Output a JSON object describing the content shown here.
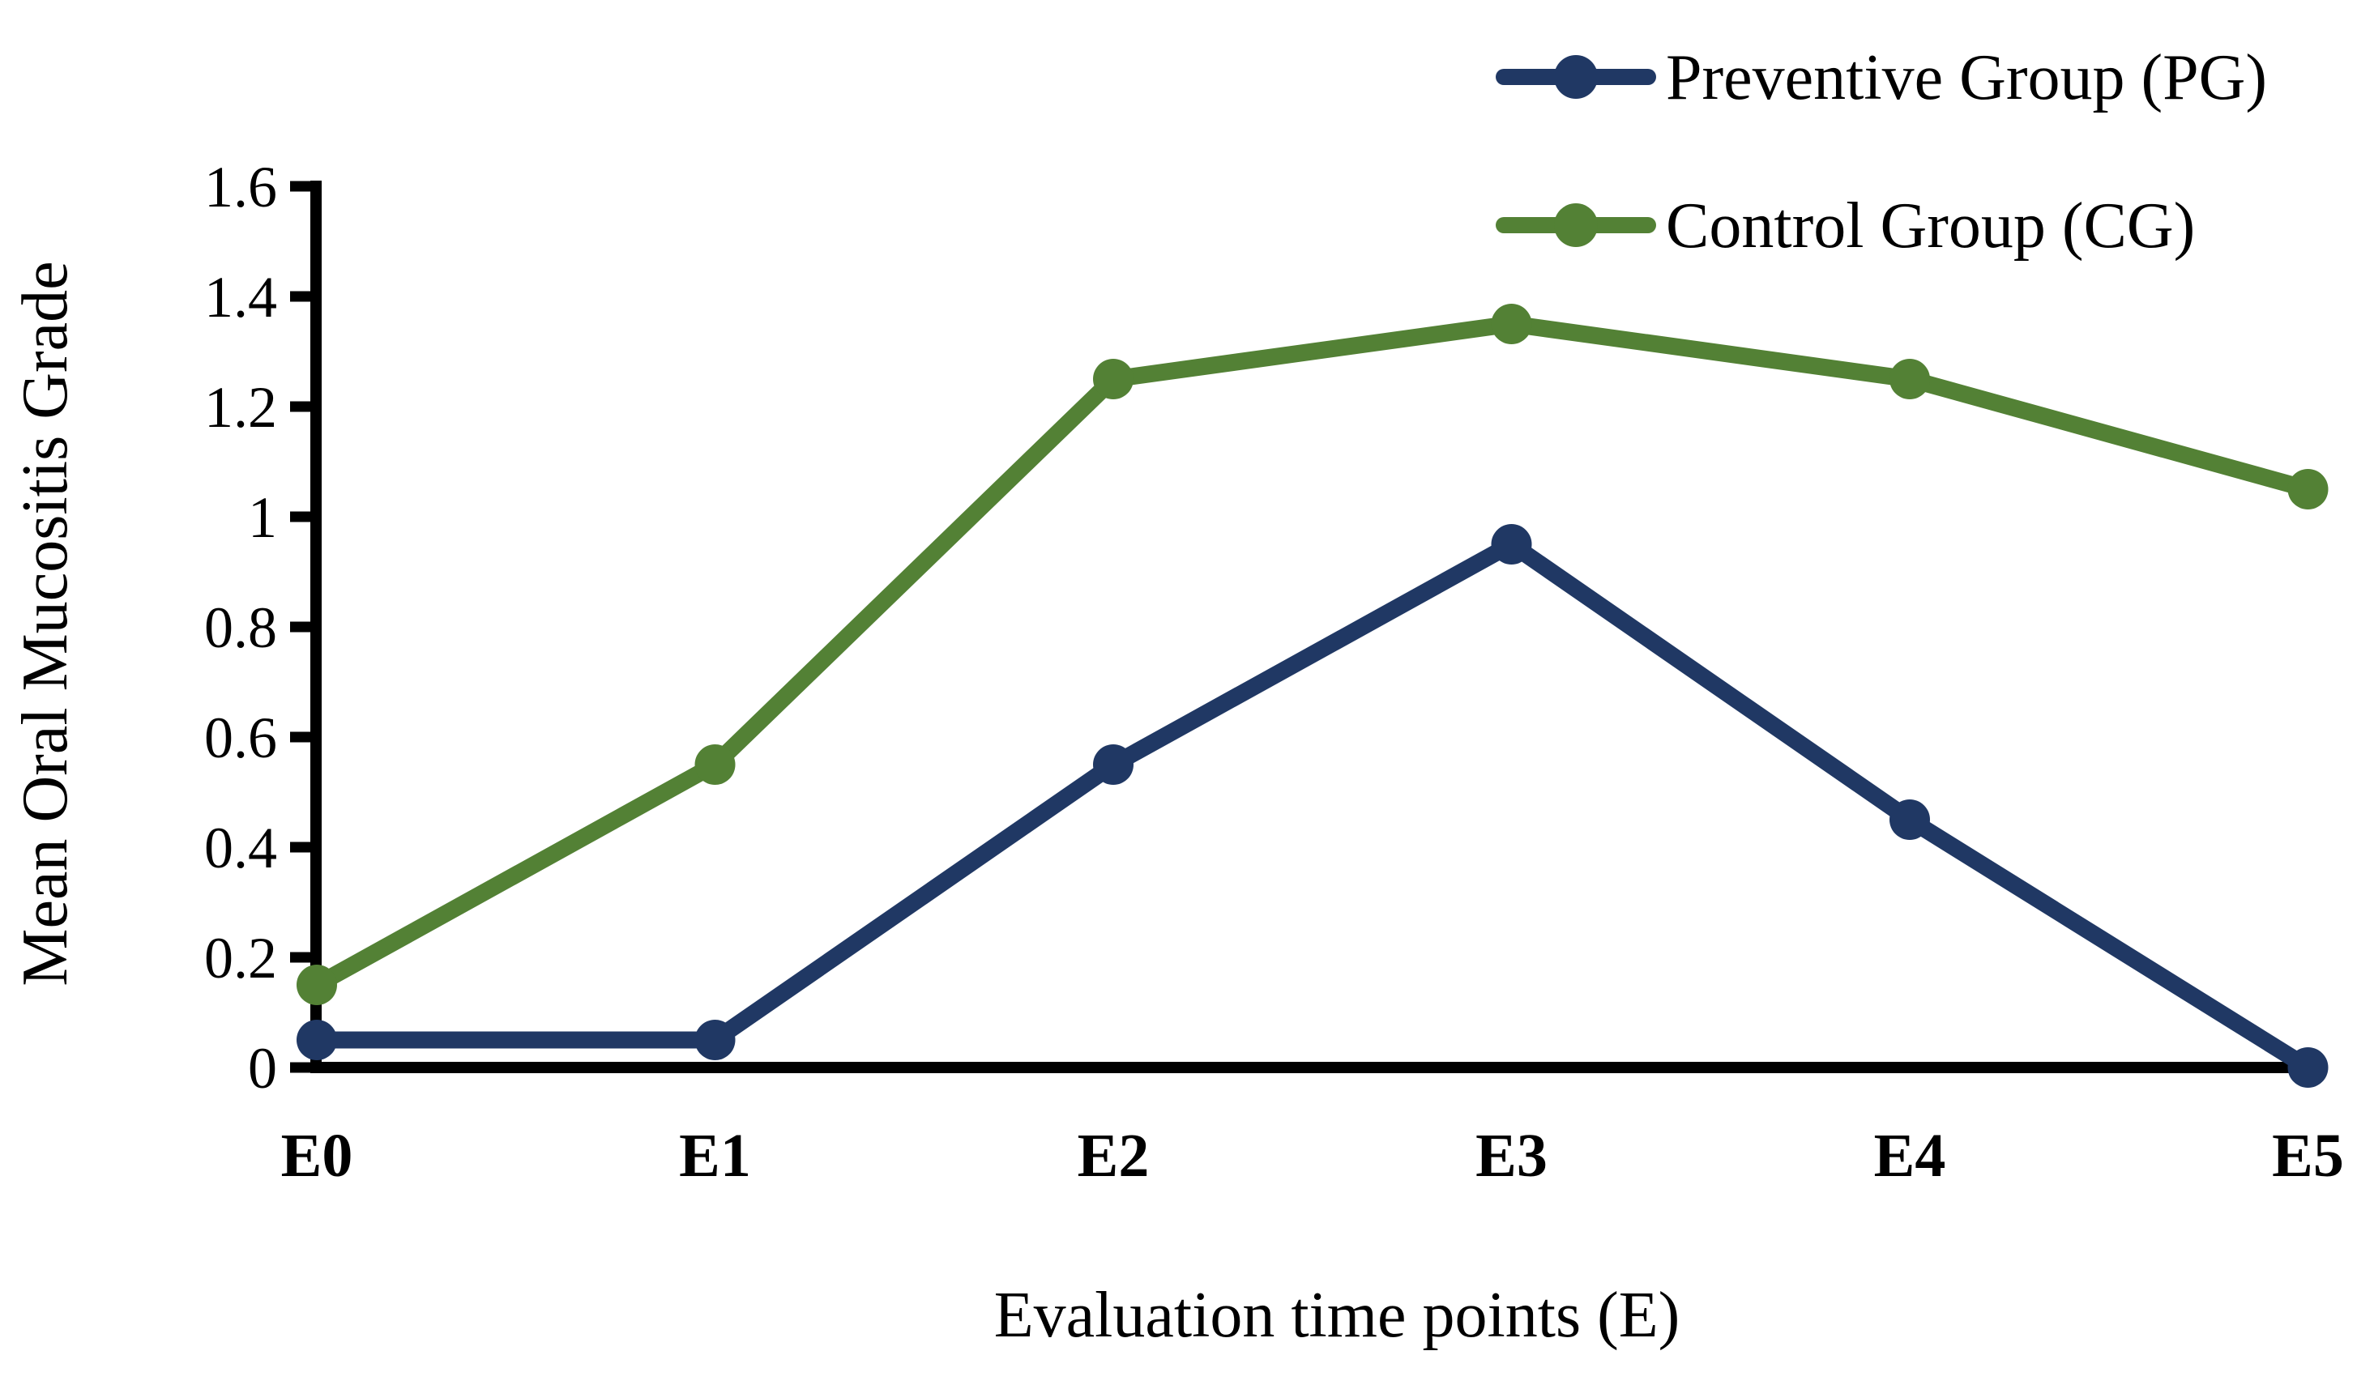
{
  "chart_data": {
    "type": "line",
    "title": "",
    "xlabel": "Evaluation time points (E)",
    "ylabel": "Mean Oral Mucositis Grade",
    "categories": [
      "E0",
      "E1",
      "E2",
      "E3",
      "E4",
      "E5"
    ],
    "series": [
      {
        "name": "Preventive Group (PG)",
        "color": "#203864",
        "values": [
          0.05,
          0.05,
          0.55,
          0.95,
          0.45,
          0
        ]
      },
      {
        "name": "Control Group (CG)",
        "color": "#538135",
        "values": [
          0.15,
          0.55,
          1.25,
          1.35,
          1.25,
          1.05
        ]
      }
    ],
    "ylim": [
      0,
      1.6
    ],
    "ytick_interval": 0.2,
    "ytick_labels": [
      "0",
      "0.2",
      "0.4",
      "0.6",
      "0.8",
      "1",
      "1.2",
      "1.4",
      "1.6"
    ],
    "grid": false,
    "legend_position": "top-right",
    "marker": "circle",
    "axis_color": "#000000",
    "background": "#ffffff"
  }
}
